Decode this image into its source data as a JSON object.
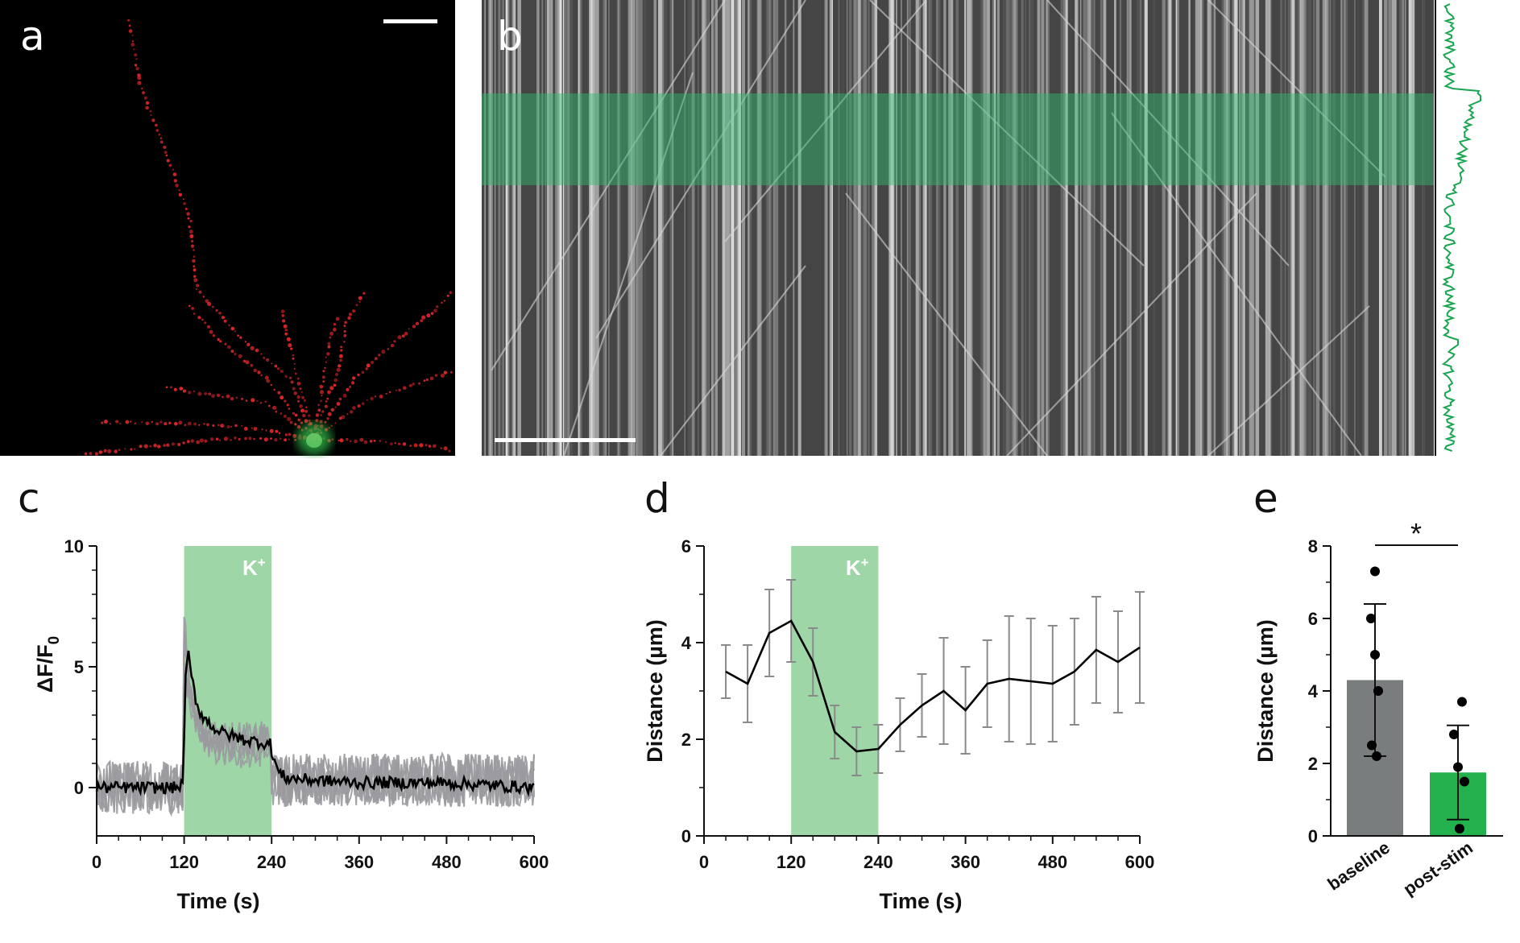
{
  "panels": {
    "a": {
      "letter": "a"
    },
    "b": {
      "letter": "b"
    },
    "c": {
      "letter": "c"
    },
    "d": {
      "letter": "d"
    },
    "e": {
      "letter": "e"
    }
  },
  "colors": {
    "stim": "#9fd6a8",
    "trace_gray": "#9a9a9e",
    "mean": "#000000",
    "bar_baseline": "#7a7d7e",
    "bar_post": "#23b14d",
    "profile": "#1aa551",
    "dendrite": "#e0262a",
    "soma": "#2fb84a"
  },
  "chart_data": [
    {
      "id": "c",
      "type": "line",
      "xlabel": "Time (s)",
      "ylabel_main": "ΔF/F",
      "ylabel_sub": "0",
      "xlim": [
        0,
        600
      ],
      "ylim": [
        -2,
        10
      ],
      "xticks": [
        0,
        120,
        240,
        360,
        480,
        600
      ],
      "yticks": [
        0,
        5,
        10
      ],
      "stim": {
        "start": 120,
        "end": 240,
        "label": "K",
        "label_sup": "+"
      },
      "mean_series": {
        "x": [
          0,
          60,
          110,
          118,
          122,
          126,
          130,
          135,
          140,
          150,
          160,
          170,
          180,
          200,
          220,
          238,
          242,
          250,
          260,
          300,
          360,
          420,
          480,
          540,
          600
        ],
        "y": [
          0,
          0,
          0,
          0.1,
          4.5,
          5.5,
          4.6,
          3.8,
          3.2,
          2.8,
          2.5,
          2.3,
          2.2,
          2.0,
          1.9,
          1.8,
          1.3,
          0.6,
          0.4,
          0.3,
          0.2,
          0.2,
          0.2,
          0.1,
          0
        ]
      }
    },
    {
      "id": "d",
      "type": "line",
      "xlabel": "Time (s)",
      "ylabel": "Distance (µm)",
      "xlim": [
        0,
        600
      ],
      "ylim": [
        0,
        6
      ],
      "xticks": [
        0,
        120,
        240,
        360,
        480,
        600
      ],
      "yticks": [
        0,
        2,
        4,
        6
      ],
      "stim": {
        "start": 120,
        "end": 240,
        "label": "K",
        "label_sup": "+"
      },
      "x": [
        30,
        60,
        90,
        120,
        150,
        180,
        210,
        240,
        270,
        300,
        330,
        360,
        390,
        420,
        450,
        480,
        510,
        540,
        570,
        600
      ],
      "y": [
        3.4,
        3.15,
        4.2,
        4.45,
        3.6,
        2.15,
        1.75,
        1.8,
        2.3,
        2.7,
        3.0,
        2.6,
        3.15,
        3.25,
        3.2,
        3.15,
        3.4,
        3.85,
        3.6,
        3.9
      ],
      "err": [
        0.55,
        0.8,
        0.9,
        0.85,
        0.7,
        0.55,
        0.5,
        0.5,
        0.55,
        0.65,
        1.1,
        0.9,
        0.9,
        1.3,
        1.3,
        1.2,
        1.1,
        1.1,
        1.05,
        1.15
      ]
    },
    {
      "id": "e",
      "type": "bar",
      "ylabel": "Distance (µm)",
      "ylim": [
        0,
        8
      ],
      "yticks": [
        0,
        2,
        4,
        6,
        8
      ],
      "categories": [
        "baseline",
        "post-stim"
      ],
      "values": [
        4.3,
        1.75
      ],
      "err": [
        2.1,
        1.3
      ],
      "points": [
        [
          7.3,
          6.0,
          5.0,
          4.0,
          2.5,
          2.2
        ],
        [
          3.7,
          2.8,
          1.9,
          1.5,
          0.2
        ]
      ],
      "significance": "*"
    }
  ]
}
